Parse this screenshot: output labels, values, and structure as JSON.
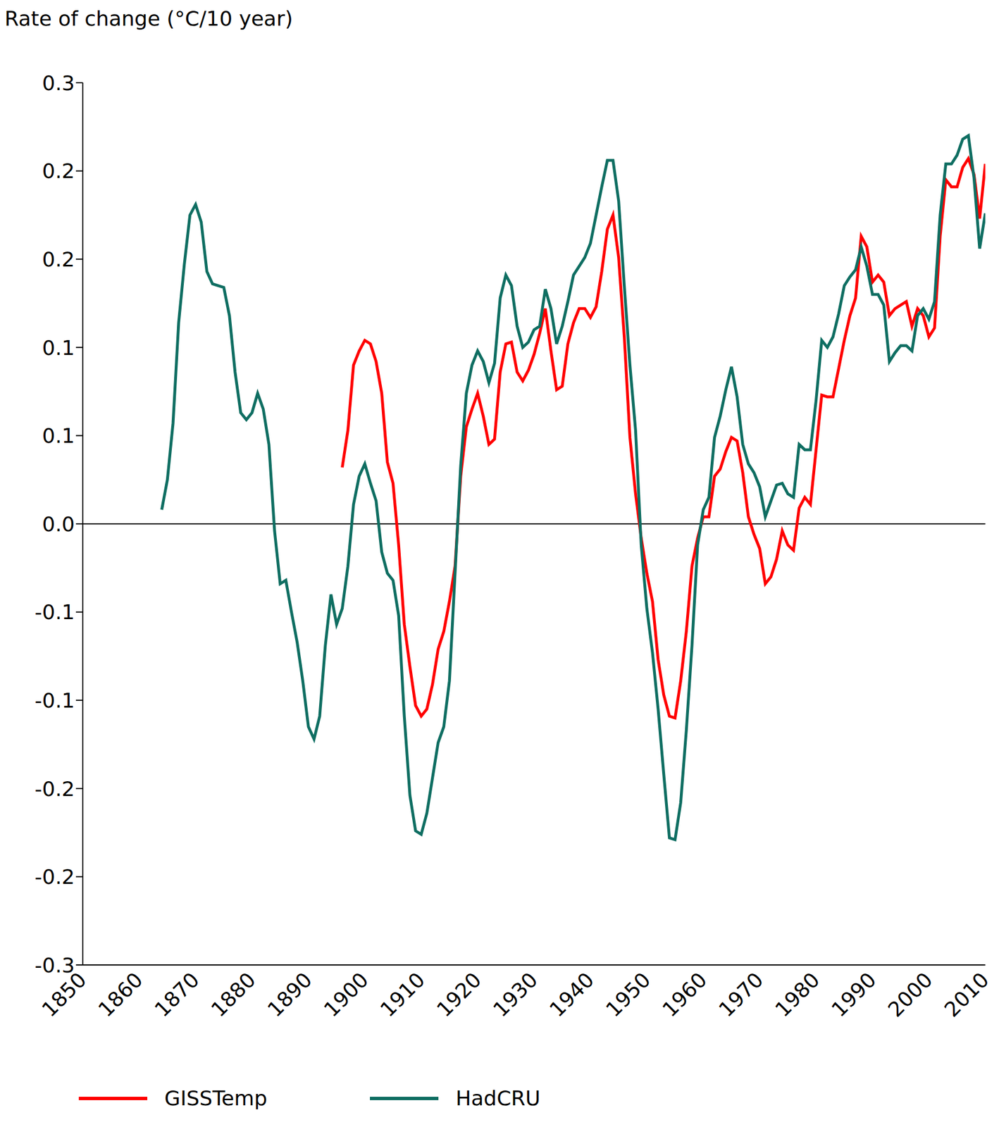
{
  "chart_data": {
    "type": "line",
    "title": "Rate of change (°C/10 year)",
    "x": [
      1864,
      1865,
      1866,
      1867,
      1868,
      1869,
      1870,
      1871,
      1872,
      1873,
      1874,
      1875,
      1876,
      1877,
      1878,
      1879,
      1880,
      1881,
      1882,
      1883,
      1884,
      1885,
      1886,
      1887,
      1888,
      1889,
      1890,
      1891,
      1892,
      1893,
      1894,
      1895,
      1896,
      1897,
      1898,
      1899,
      1900,
      1901,
      1902,
      1903,
      1904,
      1905,
      1906,
      1907,
      1908,
      1909,
      1910,
      1911,
      1912,
      1913,
      1914,
      1915,
      1916,
      1917,
      1918,
      1919,
      1920,
      1921,
      1922,
      1923,
      1924,
      1925,
      1926,
      1927,
      1928,
      1929,
      1930,
      1931,
      1932,
      1933,
      1934,
      1935,
      1936,
      1937,
      1938,
      1939,
      1940,
      1941,
      1942,
      1943,
      1944,
      1945,
      1946,
      1947,
      1948,
      1949,
      1950,
      1951,
      1952,
      1953,
      1954,
      1955,
      1956,
      1957,
      1958,
      1959,
      1960,
      1961,
      1962,
      1963,
      1964,
      1965,
      1966,
      1967,
      1968,
      1969,
      1970,
      1971,
      1972,
      1973,
      1974,
      1975,
      1976,
      1977,
      1978,
      1979,
      1980,
      1981,
      1982,
      1983,
      1984,
      1985,
      1986,
      1987,
      1988,
      1989,
      1990,
      1991,
      1992,
      1993,
      1994,
      1995,
      1996,
      1997,
      1998,
      1999,
      2000,
      2001,
      2002,
      2003,
      2004,
      2005,
      2006,
      2007,
      2008,
      2009,
      2010
    ],
    "series": [
      {
        "name": "GISSTemp",
        "color": "#ff0000",
        "values": [
          null,
          null,
          null,
          null,
          null,
          null,
          null,
          null,
          null,
          null,
          null,
          null,
          null,
          null,
          null,
          null,
          null,
          null,
          null,
          null,
          null,
          null,
          null,
          null,
          null,
          null,
          null,
          null,
          null,
          null,
          null,
          null,
          0.032,
          0.053,
          0.09,
          0.098,
          0.104,
          0.102,
          0.092,
          0.074,
          0.035,
          0.023,
          -0.012,
          -0.057,
          -0.081,
          -0.103,
          -0.109,
          -0.105,
          -0.091,
          -0.071,
          -0.061,
          -0.044,
          -0.024,
          0.027,
          0.055,
          0.065,
          0.074,
          0.061,
          0.045,
          0.048,
          0.086,
          0.102,
          0.103,
          0.086,
          0.081,
          0.087,
          0.096,
          0.108,
          0.122,
          0.098,
          0.076,
          0.078,
          0.102,
          0.114,
          0.122,
          0.122,
          0.117,
          0.123,
          0.143,
          0.167,
          0.175,
          0.151,
          0.106,
          0.049,
          0.017,
          -0.008,
          -0.028,
          -0.044,
          -0.077,
          -0.097,
          -0.109,
          -0.11,
          -0.089,
          -0.061,
          -0.024,
          -0.008,
          0.004,
          0.004,
          0.027,
          0.031,
          0.041,
          0.049,
          0.047,
          0.029,
          0.004,
          -0.006,
          -0.014,
          -0.034,
          -0.03,
          -0.02,
          -0.004,
          -0.012,
          -0.015,
          0.009,
          0.015,
          0.011,
          0.042,
          0.073,
          0.072,
          0.072,
          0.088,
          0.104,
          0.118,
          0.128,
          0.163,
          0.157,
          0.137,
          0.141,
          0.137,
          0.118,
          0.122,
          0.124,
          0.126,
          0.112,
          0.122,
          0.118,
          0.106,
          0.111,
          0.163,
          0.195,
          0.191,
          0.191,
          0.202,
          0.207,
          0.198,
          0.173,
          0.204
        ]
      },
      {
        "name": "HadCRU",
        "color": "#0f6e62",
        "values": [
          0.008,
          0.025,
          0.057,
          0.114,
          0.147,
          0.175,
          0.181,
          0.171,
          0.143,
          0.136,
          0.135,
          0.134,
          0.118,
          0.086,
          0.063,
          0.059,
          0.063,
          0.074,
          0.065,
          0.045,
          -0.004,
          -0.034,
          -0.032,
          -0.05,
          -0.067,
          -0.089,
          -0.115,
          -0.122,
          -0.109,
          -0.069,
          -0.04,
          -0.057,
          -0.048,
          -0.024,
          0.011,
          0.027,
          0.034,
          0.023,
          0.013,
          -0.016,
          -0.028,
          -0.032,
          -0.052,
          -0.109,
          -0.154,
          -0.174,
          -0.176,
          -0.164,
          -0.144,
          -0.124,
          -0.115,
          -0.089,
          -0.028,
          0.033,
          0.074,
          0.09,
          0.098,
          0.092,
          0.08,
          0.091,
          0.128,
          0.141,
          0.135,
          0.112,
          0.1,
          0.103,
          0.11,
          0.112,
          0.133,
          0.122,
          0.102,
          0.112,
          0.126,
          0.141,
          0.146,
          0.151,
          0.159,
          0.175,
          0.191,
          0.206,
          0.206,
          0.183,
          0.135,
          0.09,
          0.053,
          -0.012,
          -0.048,
          -0.073,
          -0.105,
          -0.142,
          -0.178,
          -0.179,
          -0.158,
          -0.117,
          -0.069,
          -0.012,
          0.008,
          0.015,
          0.049,
          0.061,
          0.076,
          0.089,
          0.072,
          0.045,
          0.034,
          0.029,
          0.021,
          0.004,
          0.013,
          0.022,
          0.023,
          0.017,
          0.015,
          0.045,
          0.042,
          0.042,
          0.07,
          0.104,
          0.1,
          0.106,
          0.119,
          0.135,
          0.14,
          0.144,
          0.157,
          0.146,
          0.13,
          0.13,
          0.124,
          0.092,
          0.097,
          0.101,
          0.101,
          0.098,
          0.118,
          0.122,
          0.116,
          0.126,
          0.175,
          0.204,
          0.204,
          0.209,
          0.218,
          0.22,
          0.196,
          0.156,
          0.176
        ]
      }
    ],
    "xlim": [
      1850,
      2010
    ],
    "xticks": [
      1850,
      1860,
      1870,
      1880,
      1890,
      1900,
      1910,
      1920,
      1930,
      1940,
      1950,
      1960,
      1970,
      1980,
      1990,
      2000,
      2010
    ],
    "ylim": [
      -0.25,
      0.25
    ],
    "yticks": [
      {
        "value": -0.25,
        "label": "-0.3"
      },
      {
        "value": -0.2,
        "label": "-0.2"
      },
      {
        "value": -0.15,
        "label": "-0.2"
      },
      {
        "value": -0.1,
        "label": "-0.1"
      },
      {
        "value": -0.05,
        "label": "-0.1"
      },
      {
        "value": 0,
        "label": "0.0"
      },
      {
        "value": 0.05,
        "label": "0.1"
      },
      {
        "value": 0.1,
        "label": "0.1"
      },
      {
        "value": 0.15,
        "label": "0.2"
      },
      {
        "value": 0.2,
        "label": "0.2"
      },
      {
        "value": 0.25,
        "label": "0.3"
      }
    ],
    "grid": false,
    "legend": "bottom"
  }
}
